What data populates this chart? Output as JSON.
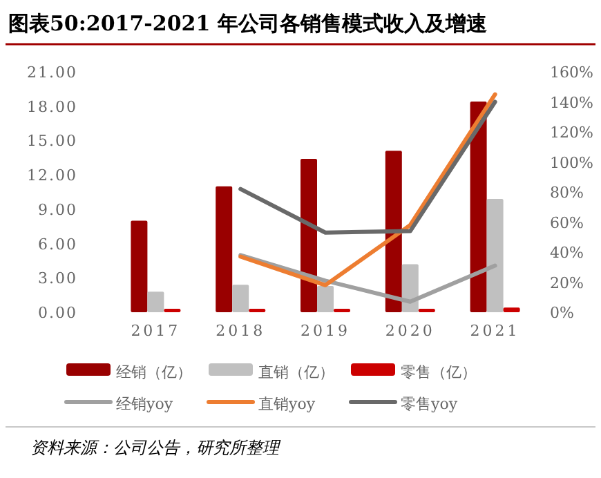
{
  "chart_data": {
    "type": "bar",
    "title": "图表50:2017-2021 年公司各销售模式收入及增速",
    "categories": [
      "2017",
      "2018",
      "2019",
      "2020",
      "2021"
    ],
    "series": [
      {
        "name": "经销（亿）",
        "color": "#990000",
        "values": [
          8.0,
          11.0,
          13.4,
          14.1,
          18.4
        ]
      },
      {
        "name": "直销（亿）",
        "color": "#c0c0c0",
        "values": [
          1.8,
          2.4,
          2.3,
          4.2,
          9.9
        ]
      },
      {
        "name": "零售（亿）",
        "color": "#cc0000",
        "values": [
          0.3,
          0.3,
          0.3,
          0.3,
          0.4
        ]
      },
      {
        "name": "经销yoy",
        "type": "line",
        "axis": "y2",
        "color": "#a0a0a0",
        "values": [
          null,
          38,
          21,
          7,
          31
        ]
      },
      {
        "name": "直销yoy",
        "type": "line",
        "axis": "y2",
        "color": "#ed7d31",
        "values": [
          null,
          37,
          18,
          58,
          145
        ]
      },
      {
        "name": "零售yoy",
        "type": "line",
        "axis": "y2",
        "color": "#696969",
        "values": [
          null,
          82,
          53,
          54,
          140
        ]
      }
    ],
    "ylim": [
      0,
      21
    ],
    "yticks": [
      {
        "value": 0,
        "label": "0.00"
      },
      {
        "value": 3,
        "label": "3.00"
      },
      {
        "value": 6,
        "label": "6.00"
      },
      {
        "value": 9,
        "label": "9.00"
      },
      {
        "value": 12,
        "label": "12.00"
      },
      {
        "value": 15,
        "label": "15.00"
      },
      {
        "value": 18,
        "label": "18.00"
      },
      {
        "value": 21,
        "label": "21.00"
      }
    ],
    "y2lim": [
      0,
      160
    ],
    "y2ticks": [
      {
        "value": 0,
        "label": "0%"
      },
      {
        "value": 20,
        "label": "20%"
      },
      {
        "value": 40,
        "label": "40%"
      },
      {
        "value": 60,
        "label": "60%"
      },
      {
        "value": 80,
        "label": "80%"
      },
      {
        "value": 100,
        "label": "100%"
      },
      {
        "value": 120,
        "label": "120%"
      },
      {
        "value": 140,
        "label": "140%"
      },
      {
        "value": 160,
        "label": "160%"
      }
    ],
    "legend": "bottom",
    "annotations": [
      "资料来源：公司公告，研究所整理"
    ]
  }
}
